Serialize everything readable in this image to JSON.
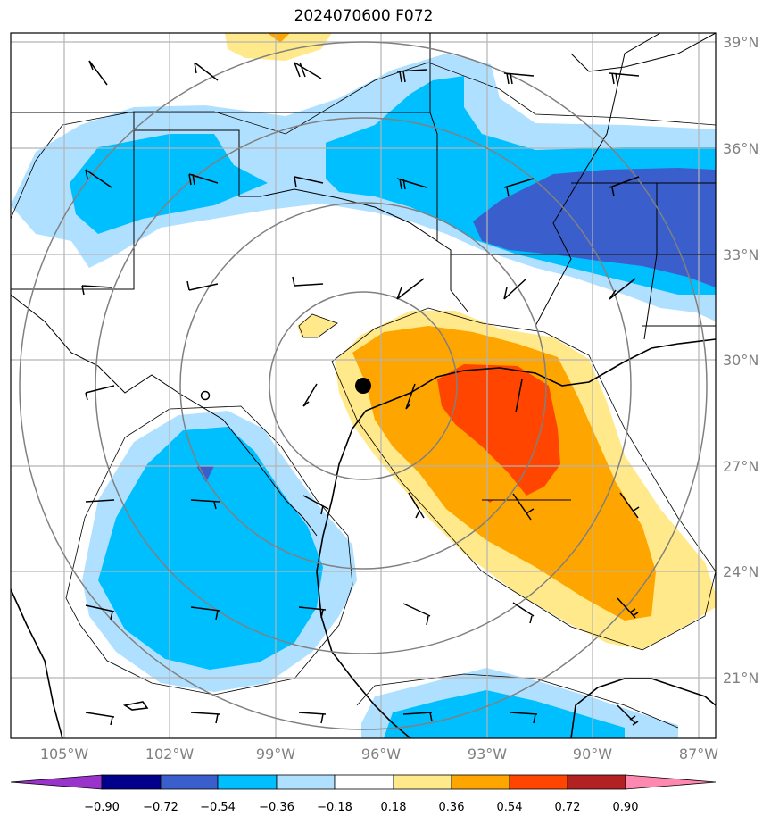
{
  "title": "2024070600 F072",
  "lat_labels": [
    "39°N",
    "36°N",
    "33°N",
    "30°N",
    "27°N",
    "24°N",
    "21°N"
  ],
  "lon_labels": [
    "105°W",
    "102°W",
    "99°W",
    "96°W",
    "93°W",
    "90°W",
    "87°W"
  ],
  "colorbar": {
    "ticks": [
      "−0.90",
      "−0.72",
      "−0.54",
      "−0.36",
      "−0.18",
      "0.18",
      "0.36",
      "0.54",
      "0.72",
      "0.90"
    ],
    "colors": [
      "#9933cc",
      "#00008b",
      "#3a5fcd",
      "#00bfff",
      "#b0e0ff",
      "#ffffff",
      "#ffe98a",
      "#ffa500",
      "#ff4500",
      "#b22222",
      "#ff88b0"
    ]
  },
  "field_colors": {
    "light_blue": "#b0e0ff",
    "blue": "#00bfff",
    "dark_blue": "#3a5fcd",
    "light_yellow": "#ffe98a",
    "orange": "#ffa500",
    "red_orange": "#ff4500"
  },
  "marker": "storm-center-dot",
  "range_rings": 4
}
